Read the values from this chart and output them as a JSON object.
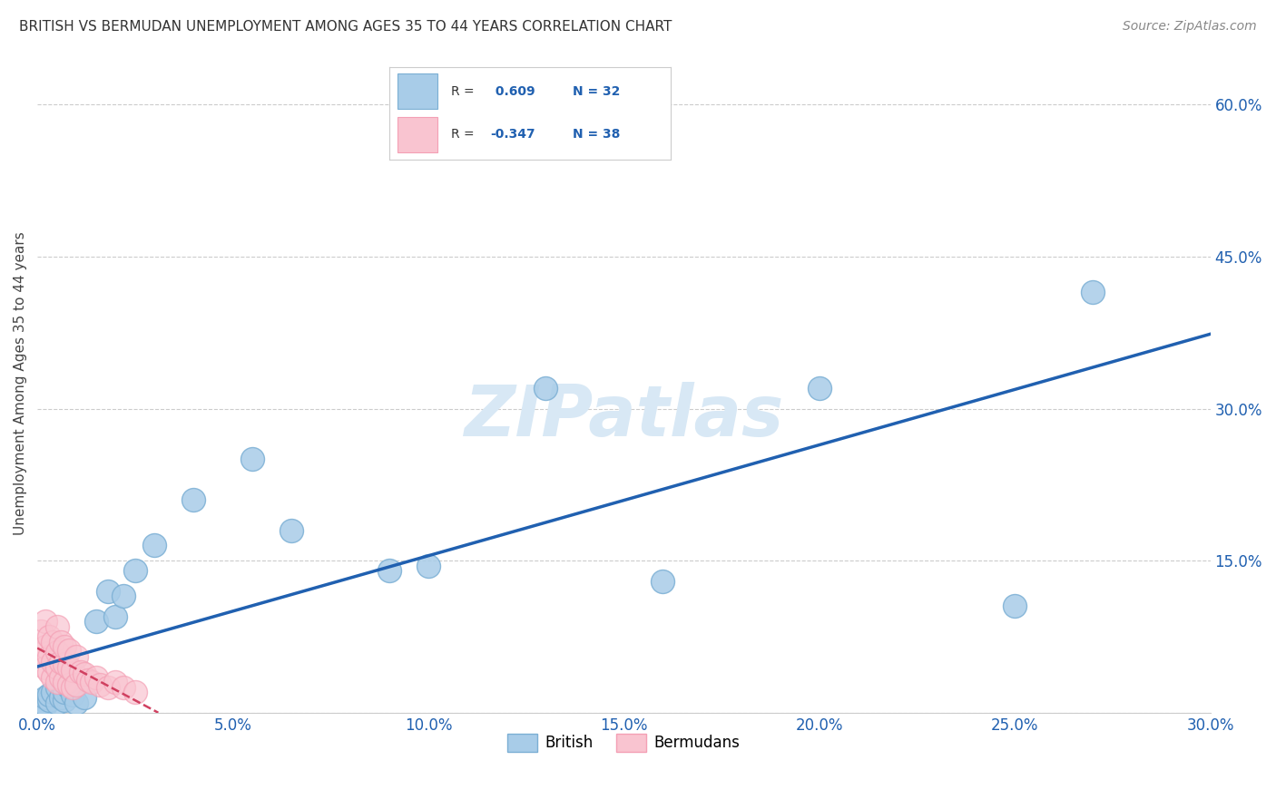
{
  "title": "BRITISH VS BERMUDAN UNEMPLOYMENT AMONG AGES 35 TO 44 YEARS CORRELATION CHART",
  "source_text": "Source: ZipAtlas.com",
  "ylabel": "Unemployment Among Ages 35 to 44 years",
  "xlim": [
    0.0,
    0.3
  ],
  "ylim": [
    0.0,
    0.65
  ],
  "xticks": [
    0.0,
    0.05,
    0.1,
    0.15,
    0.2,
    0.25,
    0.3
  ],
  "yticks": [
    0.0,
    0.15,
    0.3,
    0.45,
    0.6
  ],
  "xticklabels": [
    "0.0%",
    "5.0%",
    "10.0%",
    "15.0%",
    "20.0%",
    "25.0%",
    "30.0%"
  ],
  "yticklabels": [
    "",
    "15.0%",
    "30.0%",
    "45.0%",
    "60.0%"
  ],
  "british_color": "#A8CCE8",
  "british_edge_color": "#7BAFD4",
  "bermudan_color": "#F9C4D0",
  "bermudan_edge_color": "#F4A0B5",
  "british_line_color": "#2060B0",
  "bermudan_line_color": "#D04060",
  "watermark_color": "#D8E8F5",
  "r_british": 0.609,
  "n_british": 32,
  "r_bermudan": -0.347,
  "n_bermudan": 38,
  "british_scatter_x": [
    0.001,
    0.001,
    0.002,
    0.002,
    0.003,
    0.003,
    0.004,
    0.005,
    0.005,
    0.006,
    0.007,
    0.007,
    0.008,
    0.009,
    0.01,
    0.012,
    0.015,
    0.018,
    0.02,
    0.022,
    0.025,
    0.03,
    0.04,
    0.055,
    0.065,
    0.09,
    0.1,
    0.13,
    0.16,
    0.2,
    0.25,
    0.27
  ],
  "british_scatter_y": [
    0.005,
    0.01,
    0.008,
    0.015,
    0.012,
    0.018,
    0.02,
    0.01,
    0.025,
    0.015,
    0.012,
    0.02,
    0.025,
    0.018,
    0.01,
    0.015,
    0.09,
    0.12,
    0.095,
    0.115,
    0.14,
    0.165,
    0.21,
    0.25,
    0.18,
    0.14,
    0.145,
    0.32,
    0.13,
    0.32,
    0.105,
    0.415
  ],
  "bermudan_scatter_x": [
    0.001,
    0.001,
    0.002,
    0.002,
    0.002,
    0.003,
    0.003,
    0.003,
    0.004,
    0.004,
    0.004,
    0.005,
    0.005,
    0.005,
    0.005,
    0.006,
    0.006,
    0.006,
    0.007,
    0.007,
    0.007,
    0.008,
    0.008,
    0.008,
    0.009,
    0.009,
    0.01,
    0.01,
    0.011,
    0.012,
    0.013,
    0.014,
    0.015,
    0.016,
    0.018,
    0.02,
    0.022,
    0.025
  ],
  "bermudan_scatter_y": [
    0.06,
    0.08,
    0.045,
    0.065,
    0.09,
    0.04,
    0.055,
    0.075,
    0.035,
    0.05,
    0.07,
    0.03,
    0.045,
    0.06,
    0.085,
    0.035,
    0.05,
    0.07,
    0.03,
    0.048,
    0.065,
    0.028,
    0.045,
    0.062,
    0.025,
    0.042,
    0.028,
    0.055,
    0.04,
    0.038,
    0.032,
    0.03,
    0.035,
    0.028,
    0.025,
    0.03,
    0.025,
    0.02
  ],
  "british_line_x": [
    0.0,
    0.3
  ],
  "british_line_y": [
    0.0,
    0.4
  ],
  "bermudan_line_x": [
    0.0,
    0.08
  ],
  "bermudan_line_y": [
    0.07,
    0.0
  ]
}
